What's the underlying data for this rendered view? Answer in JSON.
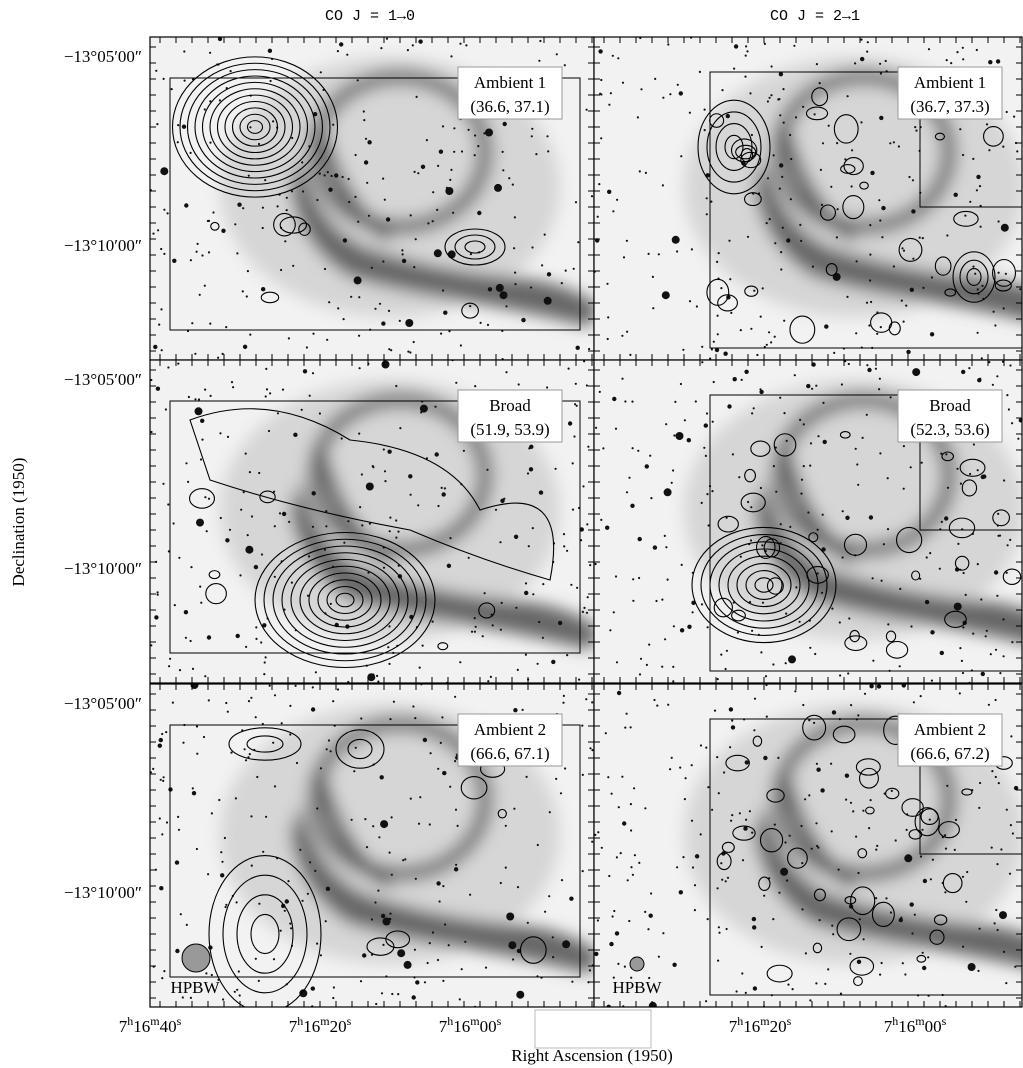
{
  "columns": [
    "CO J = 1→0",
    "CO J = 2→1"
  ],
  "y_axis_title": "Declination (1950)",
  "x_axis_title": "Right Ascension (1950)",
  "y_ticks": [
    "−13°05′00″",
    "−13°10′00″"
  ],
  "x_ticks": {
    "left": [
      [
        "7",
        "h",
        "16",
        "m",
        "40",
        "s"
      ],
      [
        "7",
        "h",
        "16",
        "m",
        "20",
        "s"
      ],
      [
        "7",
        "h",
        "16",
        "m",
        "00",
        "s"
      ]
    ],
    "right": [
      [
        "7",
        "h",
        "16",
        "m",
        "20",
        "s"
      ],
      [
        "7",
        "h",
        "16",
        "m",
        "00",
        "s"
      ]
    ]
  },
  "panels": [
    {
      "name": "Ambient 1",
      "velocities": "(36.6, 37.1)"
    },
    {
      "name": "Ambient 1",
      "velocities": "(36.7, 37.3)"
    },
    {
      "name": "Broad",
      "velocities": "(51.9, 53.9)"
    },
    {
      "name": "Broad",
      "velocities": "(52.3, 53.6)"
    },
    {
      "name": "Ambient 2",
      "velocities": "(66.6, 67.1)"
    },
    {
      "name": "Ambient 2",
      "velocities": "(66.6, 67.2)"
    }
  ],
  "beam_label": "HPBW"
}
